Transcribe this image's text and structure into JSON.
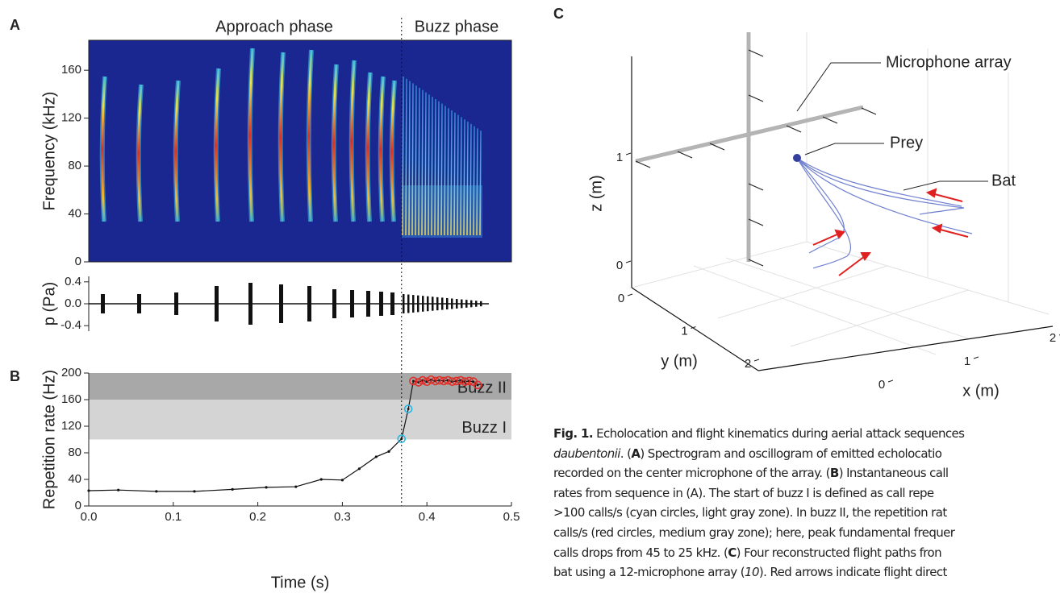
{
  "chart_data": [
    {
      "type": "spectrogram",
      "panel": "A",
      "ylabel": "Frequency (kHz)",
      "ylim": [
        0,
        185
      ],
      "yticks": [
        0,
        40,
        80,
        120,
        160
      ],
      "annotations": [
        "Approach phase",
        "Buzz phase"
      ]
    },
    {
      "type": "oscillogram",
      "ylabel": "p (Pa)",
      "ylim": [
        -0.5,
        0.5
      ],
      "yticks": [
        0.4,
        {
          "value": 0,
          "label": "0.0"
        },
        -0.4
      ]
    },
    {
      "type": "line",
      "panel": "B",
      "xlabel": "Time (s)",
      "ylabel": "Repetition rate (Hz)",
      "xlim": [
        0,
        0.5
      ],
      "xticks": [
        {
          "value": 0,
          "label": "0.0"
        },
        0.1,
        0.2,
        0.3,
        0.4,
        0.5
      ],
      "ylim": [
        0,
        200
      ],
      "yticks": [
        0,
        40,
        80,
        120,
        160,
        200
      ],
      "bands": [
        {
          "name": "Buzz I",
          "from": 100,
          "to": 160,
          "color": "#d4d4d4"
        },
        {
          "name": "Buzz II",
          "from": 160,
          "to": 200,
          "color": "#a8a8a8"
        }
      ],
      "marker_x": 0.37,
      "x": [
        0,
        0.035,
        0.08,
        0.125,
        0.17,
        0.21,
        0.245,
        0.275,
        0.3,
        0.32,
        0.34,
        0.355,
        0.37,
        0.378,
        0.384,
        0.39,
        0.395,
        0.4,
        0.405,
        0.41,
        0.415,
        0.42,
        0.425,
        0.43,
        0.435,
        0.44,
        0.445,
        0.45,
        0.455,
        0.46
      ],
      "values": [
        23,
        24,
        22,
        22,
        25,
        28,
        29,
        40,
        39,
        56,
        74,
        82,
        101,
        146,
        188,
        186,
        189,
        187,
        190,
        188,
        189,
        188,
        189,
        187,
        188,
        189,
        187,
        188,
        187,
        182
      ],
      "color": "#111111",
      "point_colors": [
        null,
        null,
        null,
        null,
        null,
        null,
        null,
        null,
        null,
        null,
        null,
        null,
        "#29b6e0",
        "#29b6e0",
        "#e0302a",
        "#e0302a",
        "#e0302a",
        "#e0302a",
        "#e0302a",
        "#e0302a",
        "#e0302a",
        "#e0302a",
        "#e0302a",
        "#e0302a",
        "#e0302a",
        "#e0302a",
        "#e0302a",
        "#e0302a",
        "#e0302a",
        "#e0302a"
      ]
    },
    {
      "type": "path3d",
      "panel": "C",
      "xlabel": "x (m)",
      "ylabel": "y (m)",
      "zlabel": "z (m)",
      "xticks": [
        0,
        1,
        2
      ],
      "yticks": [
        0,
        1,
        2
      ],
      "zticks": [
        0,
        1
      ],
      "annotations": [
        "Microphone array",
        "Prey",
        "Bat"
      ]
    }
  ],
  "caption": {
    "lines": [
      [
        {
          "text": "Fig. 1.",
          "style": "bold"
        },
        {
          "text": " Echolocation and flight kinematics during aerial attack sequences"
        }
      ],
      [
        {
          "text": "daubentonii",
          "style": "italic"
        },
        {
          "text": ". ("
        },
        {
          "text": "A",
          "style": "bold"
        },
        {
          "text": ") Spectrogram and oscillogram of emitted echolocatio"
        }
      ],
      [
        {
          "text": "recorded on the center microphone of the array. ("
        },
        {
          "text": "B",
          "style": "bold"
        },
        {
          "text": ") Instantaneous call"
        }
      ],
      [
        {
          "text": "rates from sequence in (A). The start of buzz I is defined as call repe"
        }
      ],
      [
        {
          "text": ">100 calls/s (cyan circles, light gray zone). In buzz II, the repetition rat"
        }
      ],
      [
        {
          "text": "calls/s (red circles, medium gray zone); here, peak fundamental frequer"
        }
      ],
      [
        {
          "text": "calls drops from 45 to 25 kHz. ("
        },
        {
          "text": "C",
          "style": "bold"
        },
        {
          "text": ") Four reconstructed flight paths fron"
        }
      ],
      [
        {
          "text": "bat using a 12-microphone array ("
        },
        {
          "text": "10",
          "style": "italic"
        },
        {
          "text": "). Red arrows indicate flight direct"
        }
      ]
    ]
  }
}
